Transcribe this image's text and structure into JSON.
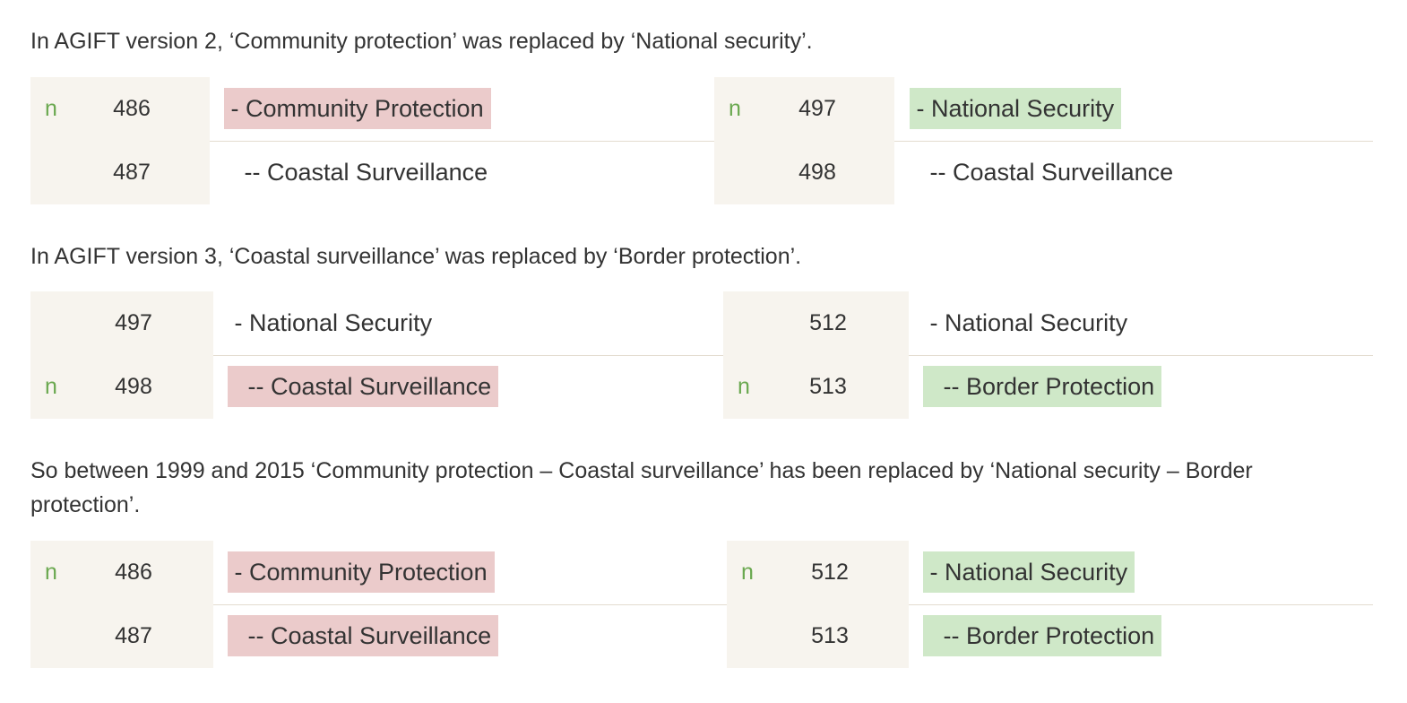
{
  "paragraphs": [
    "In AGIFT version 2, ‘Community protection’ was replaced by ‘National security’.",
    "In AGIFT version 3, ‘Coastal surveillance’ was replaced by ‘Border protection’.",
    "So between 1999 and 2015 ‘Community protection – Coastal surveillance’ has been replaced by ‘National security – Border protection’."
  ],
  "diffs": [
    {
      "left": [
        {
          "marker": "n",
          "num": "486",
          "text": " - Community Protection",
          "status": "deleted"
        },
        {
          "marker": "",
          "num": "487",
          "text": "   -- Coastal Surveillance",
          "status": "unchanged"
        }
      ],
      "right": [
        {
          "marker": "n",
          "num": "497",
          "text": " - National Security",
          "status": "added"
        },
        {
          "marker": "",
          "num": "498",
          "text": "   -- Coastal Surveillance",
          "status": "unchanged"
        }
      ]
    },
    {
      "left": [
        {
          "marker": "",
          "num": "497",
          "text": " - National Security",
          "status": "unchanged"
        },
        {
          "marker": "n",
          "num": "498",
          "text": "   -- Coastal Surveillance",
          "status": "deleted"
        }
      ],
      "right": [
        {
          "marker": "",
          "num": "512",
          "text": " - National Security",
          "status": "unchanged"
        },
        {
          "marker": "n",
          "num": "513",
          "text": "   -- Border Protection",
          "status": "added"
        }
      ]
    },
    {
      "left": [
        {
          "marker": "n",
          "num": "486",
          "text": " - Community Protection",
          "status": "deleted"
        },
        {
          "marker": "",
          "num": "487",
          "text": "   -- Coastal Surveillance",
          "status": "deleted"
        }
      ],
      "right": [
        {
          "marker": "n",
          "num": "512",
          "text": " - National Security",
          "status": "added"
        },
        {
          "marker": "",
          "num": "513",
          "text": "   -- Border Protection",
          "status": "added"
        }
      ]
    }
  ],
  "colors": {
    "deleted": "#ebcbcb",
    "added": "#cfe8c8",
    "gutter": "#f7f4ee",
    "marker": "#6aa84f"
  }
}
